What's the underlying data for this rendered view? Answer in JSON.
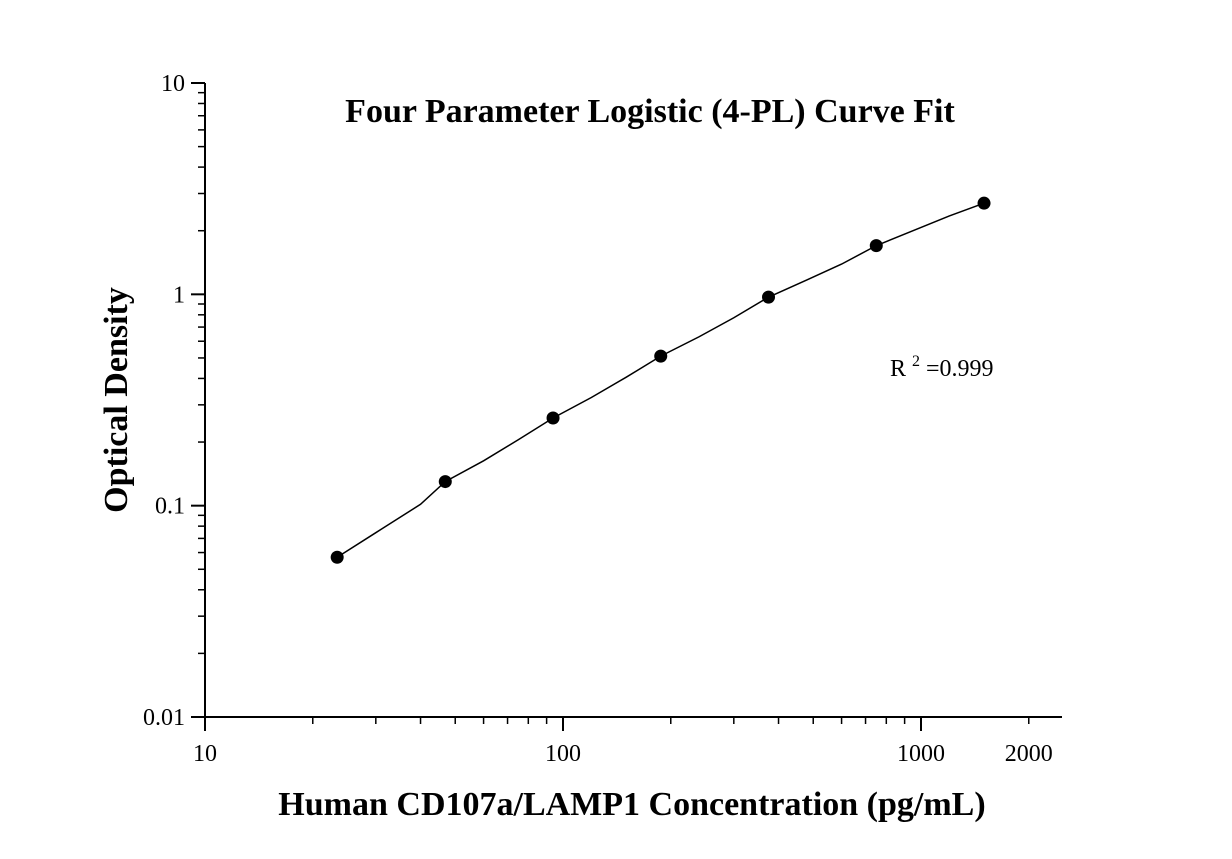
{
  "chart_data": {
    "type": "scatter",
    "title": "Four Parameter Logistic (4-PL) Curve Fit",
    "xlabel": "Human CD107a/LAMP1 Concentration (pg/mL)",
    "ylabel": "Optical Density",
    "x_scale": "log",
    "y_scale": "log",
    "xlim": [
      10,
      2000
    ],
    "ylim": [
      0.01,
      10
    ],
    "x_ticks": [
      "10",
      "100",
      "1000",
      "2000"
    ],
    "y_ticks": [
      "10",
      "1",
      "0.1",
      "0.01"
    ],
    "annotation": {
      "prefix": "R",
      "superscript": "2",
      "suffix": "=0.999"
    },
    "points": {
      "x": [
        23.4,
        46.9,
        93.8,
        187.5,
        375,
        750,
        1500
      ],
      "y": [
        0.057,
        0.13,
        0.26,
        0.51,
        0.97,
        1.7,
        2.7
      ]
    },
    "curve": {
      "x": [
        23.4,
        30,
        40,
        46.9,
        60,
        75,
        93.8,
        120,
        150,
        187.5,
        240,
        300,
        375,
        480,
        600,
        750,
        950,
        1200,
        1500
      ],
      "y": [
        0.057,
        0.0745,
        0.1015,
        0.13,
        0.163,
        0.205,
        0.26,
        0.325,
        0.405,
        0.51,
        0.63,
        0.775,
        0.97,
        1.17,
        1.39,
        1.7,
        2.0,
        2.35,
        2.7
      ]
    },
    "grid": false,
    "legend": "none"
  }
}
